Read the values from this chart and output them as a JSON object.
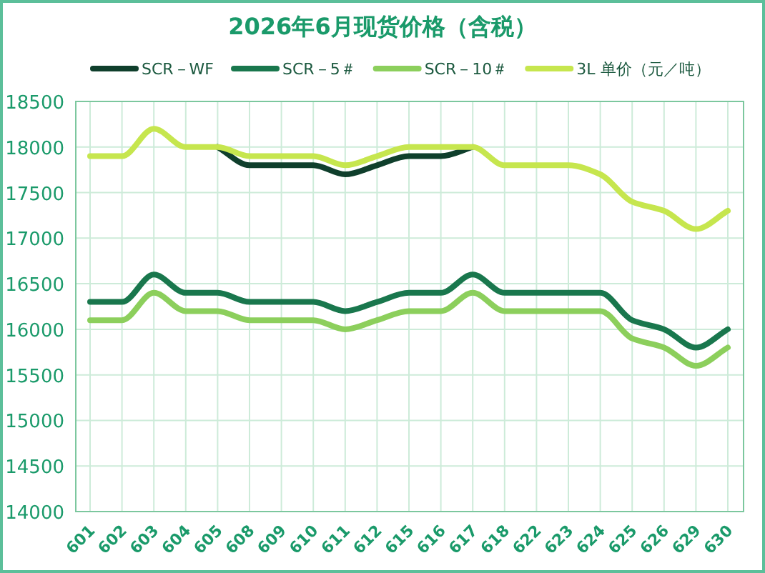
{
  "chart_data": {
    "type": "line",
    "title": "2026年6月现货价格（含税）",
    "categories": [
      "601",
      "602",
      "603",
      "604",
      "605",
      "608",
      "609",
      "610",
      "611",
      "612",
      "615",
      "616",
      "617",
      "618",
      "622",
      "623",
      "624",
      "625",
      "626",
      "629",
      "630"
    ],
    "series": [
      {
        "name": "SCR－WF",
        "color": "#0f3f2c",
        "values": [
          null,
          null,
          null,
          null,
          18000,
          17800,
          17800,
          17800,
          17700,
          17800,
          17900,
          17900,
          18000,
          null,
          null,
          null,
          null,
          null,
          null,
          null,
          null
        ]
      },
      {
        "name": "SCR－5＃",
        "color": "#19774d",
        "values": [
          16300,
          16300,
          16600,
          16400,
          16400,
          16300,
          16300,
          16300,
          16200,
          16300,
          16400,
          16400,
          16600,
          16400,
          16400,
          16400,
          16400,
          16100,
          16000,
          15800,
          16000
        ]
      },
      {
        "name": "SCR－10＃",
        "color": "#8ccf5c",
        "values": [
          16100,
          16100,
          16400,
          16200,
          16200,
          16100,
          16100,
          16100,
          16000,
          16100,
          16200,
          16200,
          16400,
          16200,
          16200,
          16200,
          16200,
          15900,
          15800,
          15600,
          15800
        ]
      },
      {
        "name": "3L 单价（元／吨）",
        "color": "#c6e64e",
        "values": [
          17900,
          17900,
          18200,
          18000,
          18000,
          17900,
          17900,
          17900,
          17800,
          17900,
          18000,
          18000,
          18000,
          17800,
          17800,
          17800,
          17700,
          17400,
          17300,
          17100,
          17300
        ]
      }
    ],
    "ylim": [
      14000,
      18500
    ],
    "yticks": [
      14000,
      14500,
      15000,
      15500,
      16000,
      16500,
      17000,
      17500,
      18000,
      18500
    ],
    "grid": true,
    "legend": "top",
    "line_style": "solid"
  }
}
